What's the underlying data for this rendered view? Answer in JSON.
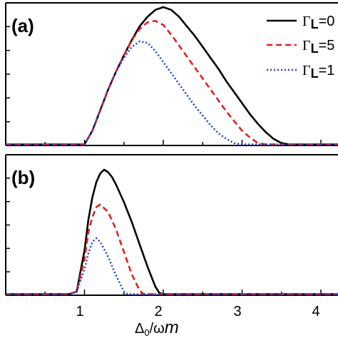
{
  "chart_data": [
    {
      "panel": "(a)",
      "type": "line",
      "xlim": [
        0,
        4.3
      ],
      "ylim": [
        0,
        1.0
      ],
      "series": [
        {
          "name": "ΓL=0",
          "color": "#000000",
          "style": "solid",
          "x": [
            0.9,
            1.0,
            1.1,
            1.2,
            1.3,
            1.4,
            1.5,
            1.6,
            1.7,
            1.8,
            1.9,
            2.0,
            2.1,
            2.2,
            2.3,
            2.4,
            2.5,
            2.6,
            2.7,
            2.8,
            2.9,
            3.0,
            3.1,
            3.2,
            3.3,
            3.4,
            3.5,
            3.6,
            3.7
          ],
          "y": [
            0.0,
            0.0,
            0.1,
            0.25,
            0.4,
            0.53,
            0.65,
            0.76,
            0.86,
            0.93,
            0.98,
            1.0,
            0.98,
            0.93,
            0.86,
            0.79,
            0.71,
            0.63,
            0.55,
            0.46,
            0.38,
            0.3,
            0.22,
            0.15,
            0.09,
            0.04,
            0.01,
            0.0,
            0.0
          ]
        },
        {
          "name": "ΓL=5",
          "color": "#e02020",
          "style": "dashed",
          "x": [
            0.9,
            1.0,
            1.1,
            1.2,
            1.3,
            1.4,
            1.5,
            1.6,
            1.7,
            1.8,
            1.9,
            2.0,
            2.1,
            2.2,
            2.3,
            2.4,
            2.5,
            2.6,
            2.7,
            2.8,
            2.9,
            3.0,
            3.1,
            3.2,
            3.3,
            3.4,
            3.5
          ],
          "y": [
            0.0,
            0.0,
            0.1,
            0.25,
            0.4,
            0.53,
            0.65,
            0.76,
            0.84,
            0.89,
            0.9,
            0.87,
            0.8,
            0.72,
            0.64,
            0.56,
            0.48,
            0.4,
            0.32,
            0.24,
            0.17,
            0.1,
            0.05,
            0.01,
            0.0,
            0.0,
            0.0
          ]
        },
        {
          "name": "ΓL=1",
          "color": "#2040d0",
          "style": "dotted",
          "x": [
            0.9,
            1.0,
            1.1,
            1.2,
            1.3,
            1.4,
            1.5,
            1.6,
            1.7,
            1.8,
            1.9,
            2.0,
            2.1,
            2.2,
            2.3,
            2.4,
            2.5,
            2.6,
            2.7,
            2.8,
            2.9,
            3.0,
            3.1,
            3.2
          ],
          "y": [
            0.0,
            0.0,
            0.1,
            0.25,
            0.4,
            0.53,
            0.63,
            0.71,
            0.75,
            0.74,
            0.68,
            0.6,
            0.52,
            0.44,
            0.36,
            0.28,
            0.21,
            0.14,
            0.08,
            0.04,
            0.01,
            0.0,
            0.0,
            0.0
          ]
        }
      ]
    },
    {
      "panel": "(b)",
      "type": "line",
      "xlim": [
        0,
        4.3
      ],
      "ylim": [
        0,
        1.0
      ],
      "xlabel_left": "Δ",
      "xlabel_sub": "0",
      "xlabel_mid": "/ω",
      "xlabel_m": "m",
      "xticks": [
        "1",
        "2",
        "3",
        "4"
      ],
      "series": [
        {
          "name": "ΓL=0",
          "color": "#000000",
          "style": "solid",
          "x": [
            0.8,
            0.9,
            1.0,
            1.05,
            1.1,
            1.15,
            1.2,
            1.25,
            1.3,
            1.35,
            1.4,
            1.5,
            1.6,
            1.7,
            1.8,
            1.9,
            1.95,
            2.0,
            2.1
          ],
          "y": [
            0.0,
            0.02,
            0.35,
            0.6,
            0.78,
            0.9,
            0.97,
            1.0,
            0.98,
            0.94,
            0.88,
            0.74,
            0.58,
            0.4,
            0.22,
            0.06,
            0.01,
            0.0,
            0.0
          ]
        },
        {
          "name": "ΓL=5",
          "color": "#e02020",
          "style": "dashed",
          "x": [
            0.8,
            0.9,
            1.0,
            1.05,
            1.1,
            1.15,
            1.2,
            1.3,
            1.4,
            1.5,
            1.6,
            1.7,
            1.75,
            1.8
          ],
          "y": [
            0.0,
            0.02,
            0.28,
            0.5,
            0.62,
            0.7,
            0.72,
            0.66,
            0.52,
            0.34,
            0.16,
            0.03,
            0.0,
            0.0
          ]
        },
        {
          "name": "ΓL=1",
          "color": "#2040d0",
          "style": "dotted",
          "x": [
            0.8,
            0.9,
            1.0,
            1.05,
            1.1,
            1.15,
            1.2,
            1.3,
            1.4,
            1.5,
            1.55,
            1.6
          ],
          "y": [
            0.0,
            0.02,
            0.2,
            0.33,
            0.42,
            0.45,
            0.42,
            0.3,
            0.15,
            0.02,
            0.0,
            0.0
          ]
        }
      ]
    }
  ],
  "legend": [
    {
      "greek": "Γ",
      "sub": "L",
      "text": "=0"
    },
    {
      "greek": "Γ",
      "sub": "L",
      "text": "=5"
    },
    {
      "greek": "Γ",
      "sub": "L",
      "text": "=1"
    }
  ]
}
